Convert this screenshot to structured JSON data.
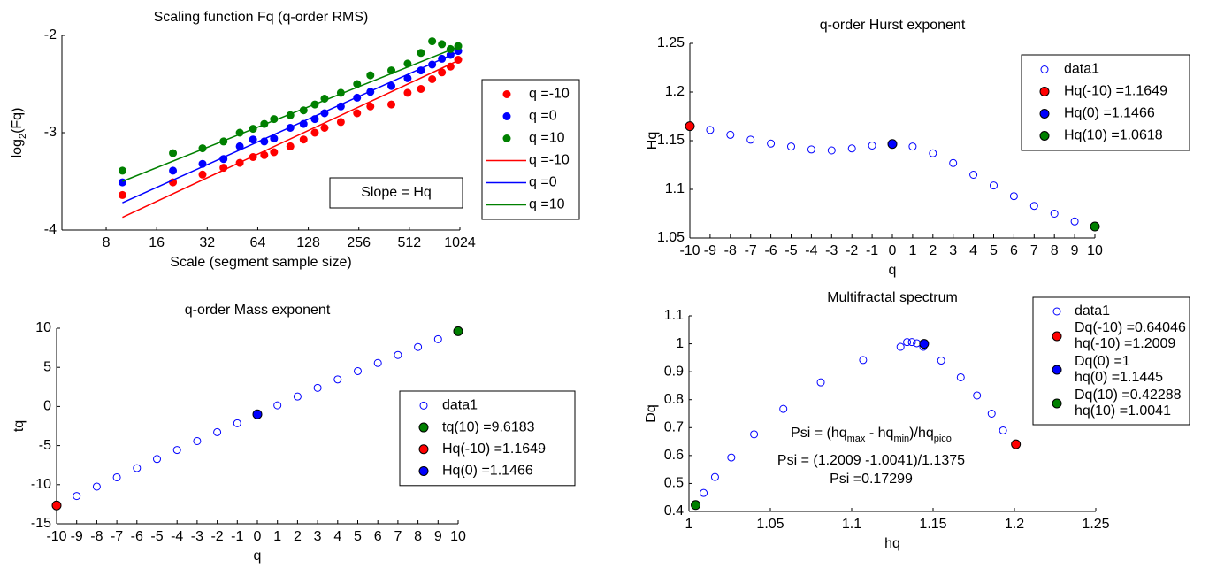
{
  "chart_data": [
    {
      "type": "scatter",
      "title": "Scaling function Fq (q-order RMS)",
      "xlabel": "Scale (segment sample size)",
      "ylabel": [
        "log",
        "2",
        "(Fq)"
      ],
      "xscale": "log2",
      "xlim": [
        4.36,
        1024
      ],
      "xticks": [
        8,
        16,
        32,
        64,
        128,
        256,
        512,
        1024
      ],
      "ylim": [
        -4,
        -2
      ],
      "yticks": [
        -4,
        -3,
        -2
      ],
      "annotations": [
        "Slope = Hq"
      ],
      "series": [
        {
          "name": "q =-10",
          "color": "#ff0000",
          "marker": "dot",
          "x": [
            10,
            20,
            30,
            40,
            50,
            60,
            70,
            80,
            100,
            120,
            140,
            160,
            200,
            250,
            300,
            400,
            500,
            600,
            700,
            800,
            900,
            1000
          ],
          "values": [
            -3.64,
            -3.51,
            -3.43,
            -3.36,
            -3.31,
            -3.25,
            -3.23,
            -3.2,
            -3.14,
            -3.07,
            -3.0,
            -2.95,
            -2.89,
            -2.8,
            -2.73,
            -2.71,
            -2.59,
            -2.55,
            -2.45,
            -2.38,
            -2.32,
            -2.25
          ]
        },
        {
          "name": "q =0",
          "color": "#0000ff",
          "marker": "dot",
          "x": [
            10,
            20,
            30,
            40,
            50,
            60,
            70,
            80,
            100,
            120,
            140,
            160,
            200,
            250,
            300,
            400,
            500,
            600,
            700,
            800,
            900,
            1000
          ],
          "values": [
            -3.51,
            -3.39,
            -3.32,
            -3.27,
            -3.14,
            -3.07,
            -3.09,
            -3.06,
            -2.95,
            -2.91,
            -2.86,
            -2.8,
            -2.73,
            -2.64,
            -2.58,
            -2.52,
            -2.44,
            -2.36,
            -2.3,
            -2.24,
            -2.2,
            -2.16
          ]
        },
        {
          "name": "q =10",
          "color": "#008000",
          "marker": "dot",
          "x": [
            10,
            20,
            30,
            40,
            50,
            60,
            70,
            80,
            100,
            120,
            140,
            160,
            200,
            250,
            300,
            400,
            500,
            600,
            700,
            800,
            900,
            1000
          ],
          "values": [
            -3.39,
            -3.21,
            -3.16,
            -3.09,
            -3.0,
            -2.96,
            -2.91,
            -2.86,
            -2.82,
            -2.77,
            -2.71,
            -2.65,
            -2.59,
            -2.5,
            -2.41,
            -2.36,
            -2.29,
            -2.18,
            -2.06,
            -2.09,
            -2.14,
            -2.11
          ]
        },
        {
          "name": "q =-10",
          "color": "#ff0000",
          "marker": "line",
          "x": [
            10,
            1024
          ],
          "values": [
            -3.87,
            -2.25
          ]
        },
        {
          "name": "q =0",
          "color": "#0000ff",
          "marker": "line",
          "x": [
            10,
            1024
          ],
          "values": [
            -3.72,
            -2.16
          ]
        },
        {
          "name": "q =10",
          "color": "#008000",
          "marker": "line",
          "x": [
            10,
            1024
          ],
          "values": [
            -3.5,
            -2.11
          ]
        }
      ]
    },
    {
      "type": "scatter",
      "title": "q-order Hurst exponent",
      "xlabel": "q",
      "ylabel": [
        "Hq"
      ],
      "xlim": [
        -10,
        10
      ],
      "xticks": [
        -10,
        -9,
        -8,
        -7,
        -6,
        -5,
        -4,
        -3,
        -2,
        -1,
        0,
        1,
        2,
        3,
        4,
        5,
        6,
        7,
        8,
        9,
        10
      ],
      "ylim": [
        1.05,
        1.25
      ],
      "yticks": [
        1.05,
        1.1,
        1.15,
        1.2,
        1.25
      ],
      "series": [
        {
          "name": "data1",
          "color": "#0000ff",
          "marker": "open",
          "x": [
            -10,
            -9,
            -8,
            -7,
            -6,
            -5,
            -4,
            -3,
            -2,
            -1,
            0,
            1,
            2,
            3,
            4,
            5,
            6,
            7,
            8,
            9,
            10
          ],
          "values": [
            1.1649,
            1.161,
            1.156,
            1.151,
            1.147,
            1.144,
            1.141,
            1.14,
            1.142,
            1.145,
            1.1466,
            1.144,
            1.137,
            1.127,
            1.115,
            1.104,
            1.093,
            1.083,
            1.075,
            1.067,
            1.0618
          ]
        },
        {
          "name": "Hq(-10) =1.1649",
          "color": "#ff0000",
          "marker": "dot",
          "x": [
            -10
          ],
          "values": [
            1.1649
          ]
        },
        {
          "name": "Hq(0) =1.1466",
          "color": "#0000ff",
          "marker": "dot",
          "x": [
            0
          ],
          "values": [
            1.1466
          ]
        },
        {
          "name": "Hq(10) =1.0618",
          "color": "#008000",
          "marker": "dot",
          "x": [
            10
          ],
          "values": [
            1.0618
          ]
        }
      ]
    },
    {
      "type": "scatter",
      "title": "q-order Mass exponent",
      "xlabel": "q",
      "ylabel": [
        "tq"
      ],
      "xlim": [
        -10,
        10
      ],
      "xticks": [
        -10,
        -9,
        -8,
        -7,
        -6,
        -5,
        -4,
        -3,
        -2,
        -1,
        0,
        1,
        2,
        3,
        4,
        5,
        6,
        7,
        8,
        9,
        10
      ],
      "ylim": [
        -15,
        10
      ],
      "yticks": [
        -15,
        -10,
        -5,
        0,
        5,
        10
      ],
      "series": [
        {
          "name": "data1",
          "color": "#0000ff",
          "marker": "open",
          "x": [
            -10,
            -9,
            -8,
            -7,
            -6,
            -5,
            -4,
            -3,
            -2,
            -1,
            0,
            1,
            2,
            3,
            4,
            5,
            6,
            7,
            8,
            9,
            10
          ],
          "values": [
            -12.649,
            -11.449,
            -10.248,
            -9.057,
            -7.882,
            -6.72,
            -5.564,
            -4.42,
            -3.284,
            -2.145,
            -1,
            0.144,
            1.274,
            2.381,
            3.46,
            4.52,
            5.558,
            6.581,
            7.6,
            8.603,
            9.6183
          ]
        },
        {
          "name": "tq(10) =9.6183",
          "color": "#008000",
          "marker": "dot",
          "x": [
            10
          ],
          "values": [
            9.6183
          ]
        },
        {
          "name": "Hq(-10) =1.1649",
          "color": "#ff0000",
          "marker": "dot",
          "x": [
            -10
          ],
          "values": [
            -12.649
          ]
        },
        {
          "name": "Hq(0) =1.1466",
          "color": "#0000ff",
          "marker": "dot",
          "x": [
            0
          ],
          "values": [
            -1
          ]
        }
      ]
    },
    {
      "type": "scatter",
      "title": "Multifractal spectrum",
      "xlabel": "hq",
      "ylabel": [
        "Dq"
      ],
      "xlim": [
        1,
        1.25
      ],
      "xticks": [
        1,
        1.05,
        1.1,
        1.15,
        1.2,
        1.25
      ],
      "ylim": [
        0.4,
        1.1
      ],
      "yticks": [
        0.4,
        0.5,
        0.6,
        0.7,
        0.8,
        0.9,
        1,
        1.1
      ],
      "annotations": [
        [
          "Psi = (hq",
          "max",
          " - hq",
          "min",
          ")/hq",
          "pico"
        ],
        [
          "Psi = (1.2009 -1.0041)/1.1375"
        ],
        [
          "Psi =0.17299"
        ]
      ],
      "series": [
        {
          "name": [
            "data1"
          ],
          "color": "#0000ff",
          "marker": "open",
          "x": [
            1.0041,
            1.009,
            1.016,
            1.026,
            1.04,
            1.058,
            1.081,
            1.107,
            1.13,
            1.134,
            1.137,
            1.14,
            1.1445,
            1.144,
            1.155,
            1.167,
            1.177,
            1.186,
            1.193,
            1.2009
          ],
          "values": [
            0.42288,
            0.466,
            0.523,
            0.593,
            0.676,
            0.767,
            0.862,
            0.942,
            0.989,
            1.006,
            1.006,
            1.002,
            1,
            0.989,
            0.94,
            0.88,
            0.815,
            0.75,
            0.69,
            0.64046
          ]
        },
        {
          "name": [
            "Dq(-10) =0.64046",
            "hq(-10) =1.2009"
          ],
          "color": "#ff0000",
          "marker": "dot",
          "x": [
            1.2009
          ],
          "values": [
            0.64046
          ]
        },
        {
          "name": [
            "Dq(0) =1",
            "hq(0) =1.1445"
          ],
          "color": "#0000ff",
          "marker": "dot",
          "x": [
            1.1445
          ],
          "values": [
            1
          ]
        },
        {
          "name": [
            "Dq(10) =0.42288",
            "hq(10) =1.0041"
          ],
          "color": "#008000",
          "marker": "dot",
          "x": [
            1.0041
          ],
          "values": [
            0.42288
          ]
        }
      ]
    }
  ]
}
